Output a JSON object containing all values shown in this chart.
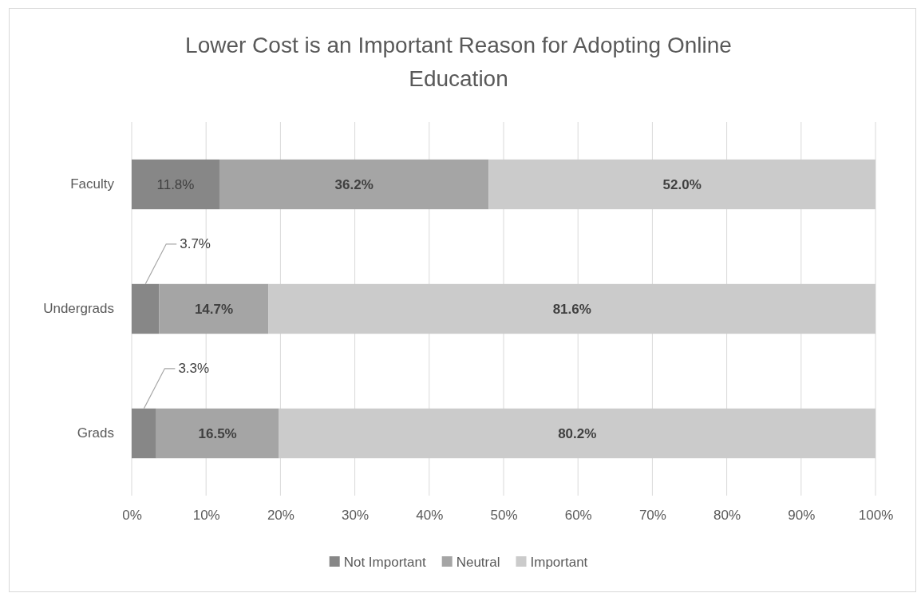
{
  "chart_data": {
    "type": "bar",
    "orientation": "horizontal",
    "stacked": true,
    "title": "Lower Cost is an Important Reason for Adopting Online Education",
    "categories": [
      "Faculty",
      "Undergrads",
      "Grads"
    ],
    "series": [
      {
        "name": "Not Important",
        "color": "#878787",
        "values": [
          11.8,
          3.7,
          3.3
        ],
        "value_labels": [
          "11.8%",
          "3.7%",
          "3.3%"
        ]
      },
      {
        "name": "Neutral",
        "color": "#a5a5a5",
        "values": [
          36.2,
          14.7,
          16.5
        ],
        "value_labels": [
          "36.2%",
          "14.7%",
          "16.5%"
        ]
      },
      {
        "name": "Important",
        "color": "#cbcbcb",
        "values": [
          52.0,
          81.6,
          80.2
        ],
        "value_labels": [
          "52.0%",
          "81.6%",
          "80.2%"
        ]
      }
    ],
    "xlim": [
      0,
      100
    ],
    "xticks": [
      {
        "value": 0,
        "label": "0%"
      },
      {
        "value": 10,
        "label": "10%"
      },
      {
        "value": 20,
        "label": "20%"
      },
      {
        "value": 30,
        "label": "30%"
      },
      {
        "value": 40,
        "label": "40%"
      },
      {
        "value": 50,
        "label": "50%"
      },
      {
        "value": 60,
        "label": "60%"
      },
      {
        "value": 70,
        "label": "70%"
      },
      {
        "value": 80,
        "label": "80%"
      },
      {
        "value": 90,
        "label": "90%"
      },
      {
        "value": 100,
        "label": "100%"
      }
    ],
    "grid": "x",
    "legend": "bottom"
  }
}
